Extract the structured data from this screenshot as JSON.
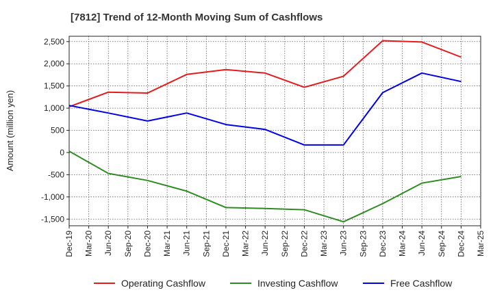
{
  "chart_data": {
    "type": "line",
    "title": "[7812]  Trend of 12-Month Moving Sum of Cashflows",
    "ylabel": "Amount (million yen)",
    "xlabel": "",
    "categories": [
      "Dec-19",
      "Mar-20",
      "Jun-20",
      "Sep-20",
      "Dec-20",
      "Mar-21",
      "Jun-21",
      "Sep-21",
      "Dec-21",
      "Mar-22",
      "Jun-22",
      "Sep-22",
      "Dec-22",
      "Mar-23",
      "Jun-23",
      "Sep-23",
      "Dec-23",
      "Mar-24",
      "Jun-24",
      "Sep-24",
      "Dec-24",
      "Mar-25"
    ],
    "ylim": [
      -1650,
      2620
    ],
    "yticks": [
      2500,
      2000,
      1500,
      1000,
      500,
      0,
      -500,
      -1000,
      -1500
    ],
    "ytick_labels": [
      "2,500",
      "2,000",
      "1,500",
      "1,000",
      "500",
      "0",
      "-500",
      "-1,000",
      "-1,500"
    ],
    "grid": true,
    "legend_position": "bottom",
    "series": [
      {
        "name": "Operating Cashflow",
        "color": "#e41a1c",
        "x": [
          "Dec-19",
          "Jun-20",
          "Dec-20",
          "Jun-21",
          "Dec-21",
          "Jun-22",
          "Dec-22",
          "Jun-23",
          "Dec-23",
          "Jun-24",
          "Dec-24"
        ],
        "values": [
          1030,
          1360,
          1340,
          1760,
          1870,
          1790,
          1470,
          1720,
          2520,
          2490,
          2150
        ]
      },
      {
        "name": "Investing Cashflow",
        "color": "#2e8b22",
        "x": [
          "Dec-19",
          "Jun-20",
          "Dec-20",
          "Jun-21",
          "Dec-21",
          "Jun-22",
          "Dec-22",
          "Jun-23",
          "Dec-23",
          "Jun-24",
          "Dec-24"
        ],
        "values": [
          30,
          -470,
          -630,
          -870,
          -1240,
          -1260,
          -1290,
          -1560,
          -1150,
          -690,
          -540
        ]
      },
      {
        "name": "Free Cashflow",
        "color": "#0000e6",
        "x": [
          "Dec-19",
          "Jun-20",
          "Dec-20",
          "Jun-21",
          "Dec-21",
          "Jun-22",
          "Dec-22",
          "Jun-23",
          "Dec-23",
          "Jun-24",
          "Dec-24"
        ],
        "values": [
          1060,
          890,
          710,
          890,
          630,
          520,
          170,
          170,
          1350,
          1790,
          1600
        ]
      }
    ]
  }
}
